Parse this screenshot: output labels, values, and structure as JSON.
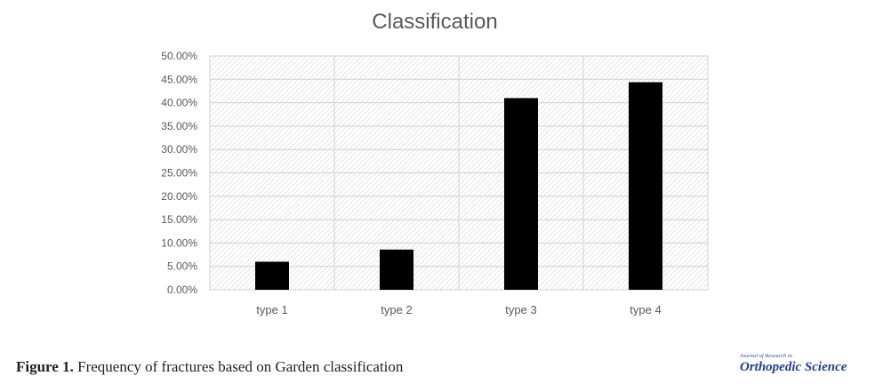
{
  "chart_data": {
    "type": "bar",
    "title": "Classification",
    "categories": [
      "type 1",
      "type 2",
      "type 3",
      "type 4"
    ],
    "values": [
      6.0,
      8.6,
      41.0,
      44.4
    ],
    "value_unit": "%",
    "ylim": [
      0,
      50
    ],
    "y_ticks": [
      "0.00%",
      "5.00%",
      "10.00%",
      "15.00%",
      "20.00%",
      "25.00%",
      "30.00%",
      "35.00%",
      "40.00%",
      "45.00%",
      "50.00%"
    ],
    "xlabel": "",
    "ylabel": "",
    "grid": true,
    "bar_color": "#000000",
    "plot_pattern": "diagonal hatch"
  },
  "caption": {
    "label": "Figure 1.",
    "text": " Frequency of fractures based on Garden classification"
  },
  "journal": {
    "line1": "Journal of Research in",
    "line2": "Orthopedic Science",
    "color": "#1f3f8f"
  }
}
